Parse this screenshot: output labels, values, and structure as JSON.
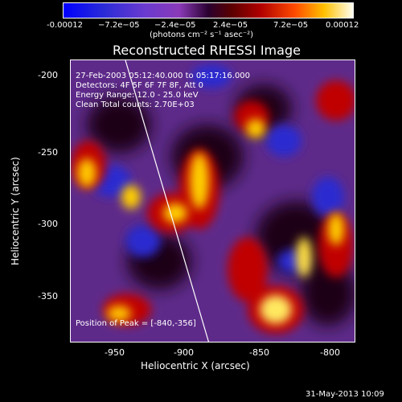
{
  "colorbar": {
    "tick_labels": [
      "-0.00012",
      "−7.2e−05",
      "−2.4e−05",
      "2.4e−05",
      "7.2e−05",
      "0.00012"
    ],
    "units": "(photons cm⁻² s⁻¹ asec⁻²)",
    "colors": [
      "#0000ff",
      "#8a3ab8",
      "#2a0030",
      "#b00000",
      "#ffc000",
      "#fffff0"
    ]
  },
  "plot": {
    "title": "Reconstructed RHESSI Image",
    "info_lines": [
      "27-Feb-2003 05:12:40.000 to 05:17:16.000",
      "Detectors: 4F 5F 6F 7F 8F, Att 0",
      "Energy Range: 12.0 - 25.0 keV",
      "Clean     Total counts: 2.70E+03"
    ],
    "peak_text": "Position of Peak = [-840,-356]",
    "x_axis": {
      "label": "Heliocentric X (arcsec)",
      "tick_labels": [
        "-950",
        "-900",
        "-850",
        "-800"
      ]
    },
    "y_axis": {
      "label": "Heliocentric Y (arcsec)",
      "tick_labels": [
        "-200",
        "-250",
        "-300",
        "-350"
      ]
    }
  },
  "footer": {
    "timestamp": "31-May-2013 10:09"
  }
}
